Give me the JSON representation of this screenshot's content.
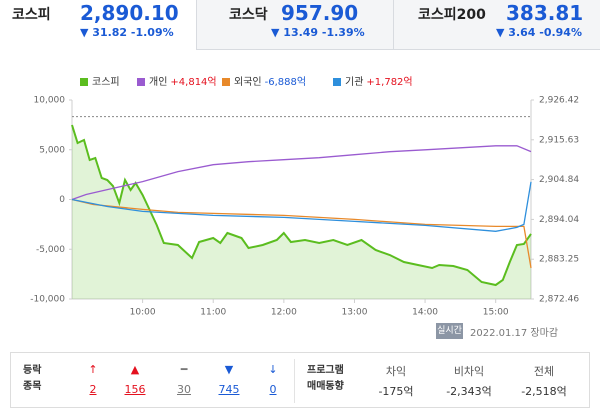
{
  "tabs": [
    {
      "name": "코스피",
      "value": "2,890.10",
      "change": "▼ 31.82 -1.09%"
    },
    {
      "name": "코스닥",
      "value": "957.90",
      "change": "▼ 13.49 -1.39%"
    },
    {
      "name": "코스피200",
      "value": "383.81",
      "change": "▼ 3.64 -0.94%"
    }
  ],
  "chart_data": {
    "type": "line",
    "xlim": [
      9,
      15.5
    ],
    "xticks": [
      {
        "value": 10,
        "label": "10:00"
      },
      {
        "value": 11,
        "label": "11:00"
      },
      {
        "value": 12,
        "label": "12:00"
      },
      {
        "value": 13,
        "label": "13:00"
      },
      {
        "value": 14,
        "label": "14:00"
      },
      {
        "value": 15,
        "label": "15:00"
      }
    ],
    "ylim": [
      -10000,
      10000
    ],
    "yticks": [
      {
        "value": 10000,
        "label": "10,000"
      },
      {
        "value": 5000,
        "label": "5,000"
      },
      0,
      {
        "value": -5000,
        "label": "-5,000"
      },
      {
        "value": -10000,
        "label": "-10,000"
      }
    ],
    "y2lim": [
      2872.46,
      2926.42
    ],
    "y2ticks": [
      {
        "value": 2926.42,
        "label": "2,926.42"
      },
      {
        "value": 2915.63,
        "label": "2,915.63"
      },
      {
        "value": 2904.84,
        "label": "2,904.84"
      },
      {
        "value": 2894.04,
        "label": "2,894.04"
      },
      {
        "value": 2883.25,
        "label": "2,883.25"
      },
      {
        "value": 2872.46,
        "label": "2,872.46"
      }
    ],
    "reference_line": 2921.92,
    "grid": false,
    "series": [
      {
        "name": "코스피",
        "color": "#5bbd1f",
        "axis": "y2",
        "fill": true,
        "x": [
          9.0,
          9.08,
          9.17,
          9.25,
          9.33,
          9.42,
          9.5,
          9.58,
          9.67,
          9.75,
          9.83,
          9.9,
          10.0,
          10.1,
          10.2,
          10.3,
          10.5,
          10.7,
          10.8,
          11.0,
          11.1,
          11.2,
          11.4,
          11.5,
          11.7,
          11.9,
          12.0,
          12.1,
          12.3,
          12.5,
          12.7,
          12.9,
          13.1,
          13.3,
          13.5,
          13.7,
          13.9,
          14.1,
          14.2,
          14.4,
          14.6,
          14.8,
          15.0,
          15.1,
          15.2,
          15.3,
          15.4,
          15.5
        ],
        "values": [
          2919.64,
          2914.76,
          2915.57,
          2910.15,
          2910.69,
          2905.27,
          2904.72,
          2903.1,
          2898.49,
          2904.72,
          2902.01,
          2903.91,
          2900.66,
          2896.59,
          2892.52,
          2887.64,
          2887.1,
          2883.57,
          2887.91,
          2889.0,
          2887.64,
          2890.35,
          2889.0,
          2886.28,
          2887.1,
          2888.45,
          2890.35,
          2887.91,
          2888.45,
          2887.64,
          2888.45,
          2887.1,
          2888.45,
          2885.74,
          2884.38,
          2882.48,
          2881.67,
          2880.86,
          2881.67,
          2881.4,
          2880.32,
          2877.06,
          2876.25,
          2877.6,
          2882.48,
          2887.1,
          2887.37,
          2890.1
        ]
      },
      {
        "name": "개인",
        "legend_value": "+4,814억",
        "color": "#9a5bd0",
        "x": [
          9.0,
          9.2,
          9.5,
          10.0,
          10.5,
          11.0,
          11.5,
          12.0,
          12.5,
          13.0,
          13.5,
          14.0,
          14.5,
          15.0,
          15.3,
          15.5
        ],
        "values": [
          0,
          500,
          1000,
          1800,
          2800,
          3500,
          3800,
          4000,
          4200,
          4500,
          4800,
          5000,
          5200,
          5400,
          5400,
          4814
        ]
      },
      {
        "name": "외국인",
        "legend_value": "-6,888억",
        "color": "#e8892a",
        "x": [
          9.0,
          9.3,
          10.0,
          10.5,
          11.0,
          12.0,
          13.0,
          14.0,
          15.0,
          15.4,
          15.5
        ],
        "values": [
          0,
          -500,
          -1000,
          -1300,
          -1400,
          -1600,
          -2000,
          -2500,
          -2700,
          -2700,
          -6888
        ]
      },
      {
        "name": "기관",
        "legend_value": "+1,782억",
        "color": "#2e8fdc",
        "x": [
          9.0,
          9.5,
          10.0,
          10.5,
          11.0,
          12.0,
          13.0,
          14.0,
          15.0,
          15.3,
          15.4,
          15.5
        ],
        "values": [
          0,
          -700,
          -1200,
          -1400,
          -1600,
          -1800,
          -2200,
          -2600,
          -3200,
          -2800,
          -2500,
          1782
        ]
      }
    ]
  },
  "status": {
    "badge": "실시간",
    "date": "2022.01.17 장마감"
  },
  "advance_decline": {
    "title": [
      "등락",
      "종목"
    ],
    "items": [
      {
        "symbol": "↑",
        "count": 2,
        "color": "#e4101e"
      },
      {
        "symbol": "▲",
        "count": 156,
        "color": "#e4101e"
      },
      {
        "symbol": "━",
        "count": 30,
        "color": "#777777"
      },
      {
        "symbol": "▼",
        "count": 745,
        "color": "#1a5ad5"
      },
      {
        "symbol": "↓",
        "count": 0,
        "color": "#1a5ad5"
      }
    ]
  },
  "program": {
    "title": [
      "프로그램",
      "매매동향"
    ],
    "columns": [
      {
        "label": "차익",
        "value": "-175억"
      },
      {
        "label": "비차익",
        "value": "-2,343억"
      },
      {
        "label": "전체",
        "value": "-2,518억"
      }
    ]
  }
}
